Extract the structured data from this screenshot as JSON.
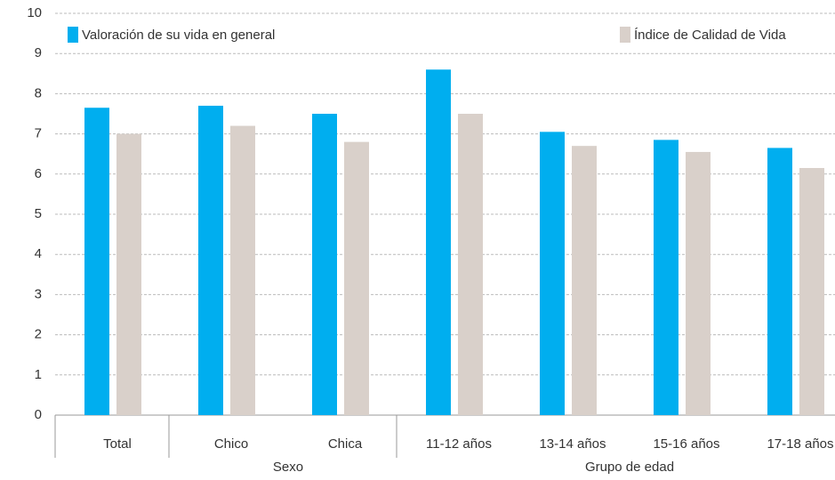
{
  "chart_data": {
    "type": "bar",
    "categories": [
      "Total",
      "Chico",
      "Chica",
      "11-12 años",
      "13-14 años",
      "15-16 años",
      "17-18 años"
    ],
    "groups": [
      {
        "name": null,
        "count": 1
      },
      {
        "name": "Sexo",
        "count": 2
      },
      {
        "name": "Grupo de edad",
        "count": 4
      }
    ],
    "series": [
      {
        "name": "Valoración de su vida en general",
        "color": "#00aeef",
        "values": [
          7.65,
          7.7,
          7.5,
          8.6,
          7.05,
          6.85,
          6.65
        ]
      },
      {
        "name": "Índice de Calidad de Vida",
        "color": "#d9d0ca",
        "values": [
          7.0,
          7.2,
          6.8,
          7.5,
          6.7,
          6.55,
          6.15
        ]
      }
    ],
    "ylim": [
      0,
      10
    ],
    "yticks": [
      0,
      1,
      2,
      3,
      4,
      5,
      6,
      7,
      8,
      9,
      10
    ],
    "grid": true,
    "legend": "top"
  }
}
